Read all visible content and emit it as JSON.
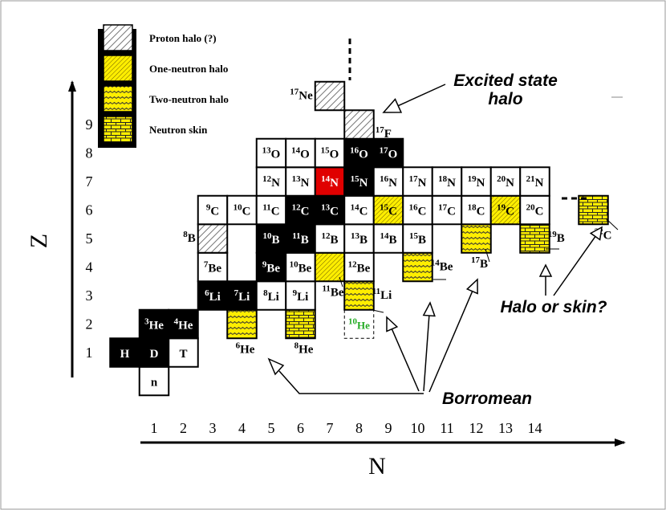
{
  "legend": [
    {
      "label": "Proton halo (?)",
      "style": "proton"
    },
    {
      "label": "One-neutron halo",
      "style": "one"
    },
    {
      "label": "Two-neutron halo",
      "style": "two"
    },
    {
      "label": "Neutron skin",
      "style": "skin"
    }
  ],
  "axes": {
    "z_title": "Z",
    "n_title": "N",
    "z_ticks": [
      "1",
      "2",
      "3",
      "4",
      "5",
      "6",
      "7",
      "8",
      "9"
    ],
    "n_ticks": [
      "1",
      "2",
      "3",
      "4",
      "5",
      "6",
      "7",
      "8",
      "9",
      "10",
      "11",
      "12",
      "13",
      "14"
    ]
  },
  "colors": {
    "black": "#000000",
    "white": "#ffffff",
    "yellow": "#ffee00",
    "red": "#e00000",
    "gray_hatch": "#888888",
    "green_text": "#22aa22"
  },
  "nuclides": [
    {
      "mass": "",
      "sym": "n",
      "z": 0,
      "n": 1,
      "style": "white"
    },
    {
      "mass": "",
      "sym": "H",
      "z": 1,
      "n": 0,
      "style": "black"
    },
    {
      "mass": "",
      "sym": "D",
      "z": 1,
      "n": 1,
      "style": "black"
    },
    {
      "mass": "",
      "sym": "T",
      "z": 1,
      "n": 2,
      "style": "white"
    },
    {
      "mass": "3",
      "sym": "He",
      "z": 2,
      "n": 1,
      "style": "black"
    },
    {
      "mass": "4",
      "sym": "He",
      "z": 2,
      "n": 2,
      "style": "black"
    },
    {
      "mass": "6",
      "sym": "He",
      "z": 2,
      "n": 4,
      "style": "two",
      "label_pos": "below"
    },
    {
      "mass": "8",
      "sym": "He",
      "z": 2,
      "n": 6,
      "style": "skin",
      "label_pos": "below"
    },
    {
      "mass": "10",
      "sym": "He",
      "z": 2,
      "n": 8,
      "style": "dashed",
      "label_pos": "inside-green"
    },
    {
      "mass": "6",
      "sym": "Li",
      "z": 3,
      "n": 3,
      "style": "black"
    },
    {
      "mass": "7",
      "sym": "Li",
      "z": 3,
      "n": 4,
      "style": "black"
    },
    {
      "mass": "8",
      "sym": "Li",
      "z": 3,
      "n": 5,
      "style": "white"
    },
    {
      "mass": "9",
      "sym": "Li",
      "z": 3,
      "n": 6,
      "style": "white"
    },
    {
      "mass": "11",
      "sym": "Li",
      "z": 3,
      "n": 8,
      "style": "two",
      "label_pos": "right"
    },
    {
      "mass": "7",
      "sym": "Be",
      "z": 4,
      "n": 3,
      "style": "white"
    },
    {
      "mass": "9",
      "sym": "Be",
      "z": 4,
      "n": 5,
      "style": "black"
    },
    {
      "mass": "10",
      "sym": "Be",
      "z": 4,
      "n": 6,
      "style": "white"
    },
    {
      "mass": "11",
      "sym": "Be",
      "z": 4,
      "n": 7,
      "style": "one",
      "label_pos": "below"
    },
    {
      "mass": "12",
      "sym": "Be",
      "z": 4,
      "n": 8,
      "style": "white"
    },
    {
      "mass": "14",
      "sym": "Be",
      "z": 4,
      "n": 10,
      "style": "two",
      "label_pos": "right"
    },
    {
      "mass": "8",
      "sym": "B",
      "z": 5,
      "n": 3,
      "style": "proton",
      "label_pos": "left"
    },
    {
      "mass": "10",
      "sym": "B",
      "z": 5,
      "n": 5,
      "style": "black"
    },
    {
      "mass": "11",
      "sym": "B",
      "z": 5,
      "n": 6,
      "style": "black"
    },
    {
      "mass": "12",
      "sym": "B",
      "z": 5,
      "n": 7,
      "style": "white"
    },
    {
      "mass": "13",
      "sym": "B",
      "z": 5,
      "n": 8,
      "style": "white"
    },
    {
      "mass": "14",
      "sym": "B",
      "z": 5,
      "n": 9,
      "style": "white"
    },
    {
      "mass": "15",
      "sym": "B",
      "z": 5,
      "n": 10,
      "style": "white"
    },
    {
      "mass": "17",
      "sym": "B",
      "z": 5,
      "n": 12,
      "style": "two",
      "label_pos": "below"
    },
    {
      "mass": "19",
      "sym": "B",
      "z": 5,
      "n": 14,
      "style": "skin",
      "label_pos": "right"
    },
    {
      "mass": "9",
      "sym": "C",
      "z": 6,
      "n": 3,
      "style": "white"
    },
    {
      "mass": "10",
      "sym": "C",
      "z": 6,
      "n": 4,
      "style": "white"
    },
    {
      "mass": "11",
      "sym": "C",
      "z": 6,
      "n": 5,
      "style": "white"
    },
    {
      "mass": "12",
      "sym": "C",
      "z": 6,
      "n": 6,
      "style": "black"
    },
    {
      "mass": "13",
      "sym": "C",
      "z": 6,
      "n": 7,
      "style": "black"
    },
    {
      "mass": "14",
      "sym": "C",
      "z": 6,
      "n": 8,
      "style": "white"
    },
    {
      "mass": "15",
      "sym": "C",
      "z": 6,
      "n": 9,
      "style": "one"
    },
    {
      "mass": "16",
      "sym": "C",
      "z": 6,
      "n": 10,
      "style": "white"
    },
    {
      "mass": "17",
      "sym": "C",
      "z": 6,
      "n": 11,
      "style": "white"
    },
    {
      "mass": "18",
      "sym": "C",
      "z": 6,
      "n": 12,
      "style": "white"
    },
    {
      "mass": "19",
      "sym": "C",
      "z": 6,
      "n": 13,
      "style": "one"
    },
    {
      "mass": "20",
      "sym": "C",
      "z": 6,
      "n": 14,
      "style": "white"
    },
    {
      "mass": "22",
      "sym": "C",
      "z": 6,
      "n": 16,
      "style": "skin",
      "label_pos": "below-right"
    },
    {
      "mass": "12",
      "sym": "N",
      "z": 7,
      "n": 5,
      "style": "white"
    },
    {
      "mass": "13",
      "sym": "N",
      "z": 7,
      "n": 6,
      "style": "white"
    },
    {
      "mass": "14",
      "sym": "N",
      "z": 7,
      "n": 7,
      "style": "red"
    },
    {
      "mass": "15",
      "sym": "N",
      "z": 7,
      "n": 8,
      "style": "black"
    },
    {
      "mass": "16",
      "sym": "N",
      "z": 7,
      "n": 9,
      "style": "white"
    },
    {
      "mass": "17",
      "sym": "N",
      "z": 7,
      "n": 10,
      "style": "white"
    },
    {
      "mass": "18",
      "sym": "N",
      "z": 7,
      "n": 11,
      "style": "white"
    },
    {
      "mass": "19",
      "sym": "N",
      "z": 7,
      "n": 12,
      "style": "white"
    },
    {
      "mass": "20",
      "sym": "N",
      "z": 7,
      "n": 13,
      "style": "white"
    },
    {
      "mass": "21",
      "sym": "N",
      "z": 7,
      "n": 14,
      "style": "white"
    },
    {
      "mass": "13",
      "sym": "O",
      "z": 8,
      "n": 5,
      "style": "white"
    },
    {
      "mass": "14",
      "sym": "O",
      "z": 8,
      "n": 6,
      "style": "white"
    },
    {
      "mass": "15",
      "sym": "O",
      "z": 8,
      "n": 7,
      "style": "white"
    },
    {
      "mass": "16",
      "sym": "O",
      "z": 8,
      "n": 8,
      "style": "black"
    },
    {
      "mass": "17",
      "sym": "O",
      "z": 8,
      "n": 9,
      "style": "black"
    },
    {
      "mass": "17",
      "sym": "F",
      "z": 9,
      "n": 8,
      "style": "proton",
      "label_pos": "right-low"
    },
    {
      "mass": "17",
      "sym": "Ne",
      "z": 10,
      "n": 7,
      "style": "proton",
      "label_pos": "left"
    }
  ],
  "annotations": {
    "excited_line1": "Excited state",
    "excited_line2": "halo",
    "halo_or_skin": "Halo or skin?",
    "borromean": "Borromean"
  }
}
